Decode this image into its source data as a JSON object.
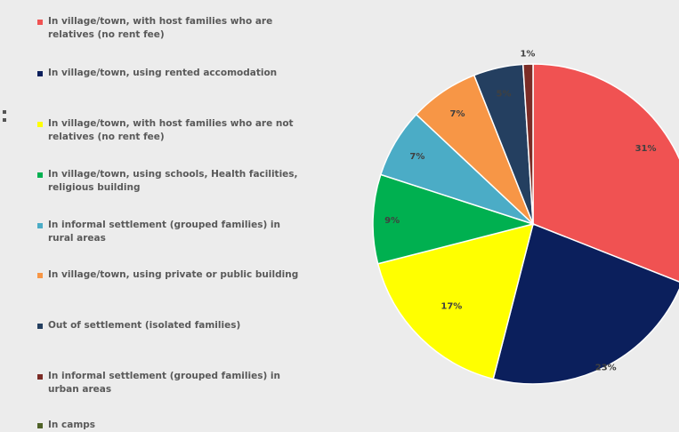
{
  "chart_data": {
    "type": "pie",
    "series": [
      {
        "label": "In village/town, with host families who are relatives (no rent fee)",
        "value": 31,
        "display": "31%",
        "color": "#f05252"
      },
      {
        "label": "In village/town, using rented accomodation",
        "value": 23,
        "display": "23%",
        "color": "#0b1f5c"
      },
      {
        "label": "In village/town, with host families who are not relatives (no rent fee)",
        "value": 17,
        "display": "17%",
        "color": "#ffff00"
      },
      {
        "label": "In village/town, using schools, Health facilities, religious building",
        "value": 9,
        "display": "9%",
        "color": "#00b050"
      },
      {
        "label": "In informal settlement (grouped families) in rural areas",
        "value": 7,
        "display": "7%",
        "color": "#4bacc6"
      },
      {
        "label": "In village/town, using private or public building",
        "value": 7,
        "display": "7%",
        "color": "#f79646"
      },
      {
        "label": "Out of settlement (isolated families)",
        "value": 5,
        "display": "5%",
        "color": "#243f60"
      },
      {
        "label": "In informal settlement (grouped families) in urban areas",
        "value": 1,
        "display": "1%",
        "color": "#7b2c26"
      },
      {
        "label": "In camps",
        "value": 0,
        "display": "",
        "color": "#4f6228"
      }
    ],
    "legend_position": "left"
  }
}
